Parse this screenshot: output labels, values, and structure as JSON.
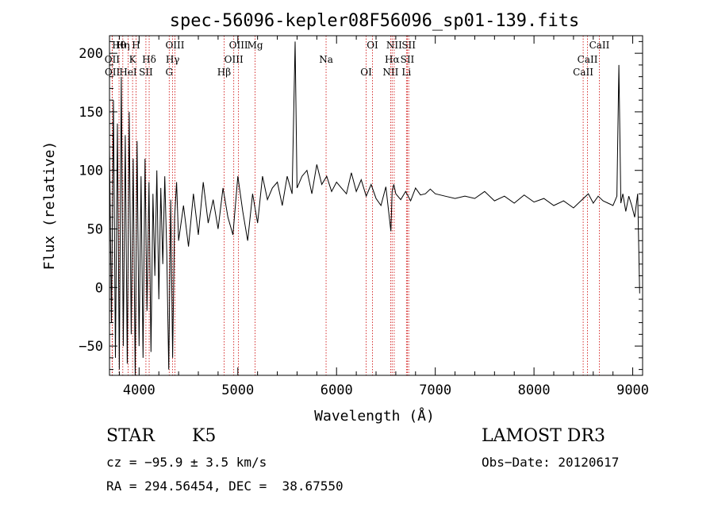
{
  "chart_data": {
    "type": "line",
    "title": "spec-56096-kepler08F56096_sp01-139.fits",
    "xlabel": "Wavelength (Å)",
    "ylabel": "Flux (relative)",
    "xlim": [
      3700,
      9100
    ],
    "ylim": [
      -75,
      215
    ],
    "x_ticks": [
      4000,
      5000,
      6000,
      7000,
      8000,
      9000
    ],
    "y_ticks": [
      -50,
      0,
      50,
      100,
      150,
      200
    ],
    "grid": false,
    "series": [
      {
        "name": "flux",
        "x": [
          3700,
          3720,
          3740,
          3760,
          3780,
          3800,
          3820,
          3840,
          3860,
          3880,
          3900,
          3920,
          3940,
          3960,
          3980,
          4000,
          4020,
          4040,
          4060,
          4080,
          4100,
          4120,
          4140,
          4160,
          4180,
          4200,
          4220,
          4240,
          4260,
          4280,
          4300,
          4320,
          4340,
          4360,
          4380,
          4400,
          4450,
          4500,
          4550,
          4600,
          4650,
          4700,
          4750,
          4800,
          4850,
          4900,
          4950,
          5000,
          5050,
          5100,
          5150,
          5200,
          5250,
          5300,
          5350,
          5400,
          5450,
          5500,
          5550,
          5580,
          5600,
          5650,
          5700,
          5750,
          5800,
          5850,
          5900,
          5950,
          6000,
          6050,
          6100,
          6150,
          6200,
          6250,
          6300,
          6350,
          6400,
          6450,
          6500,
          6550,
          6563,
          6580,
          6600,
          6650,
          6700,
          6750,
          6800,
          6850,
          6900,
          6950,
          7000,
          7100,
          7200,
          7300,
          7400,
          7500,
          7600,
          7700,
          7800,
          7900,
          8000,
          8100,
          8200,
          8300,
          8400,
          8500,
          8550,
          8600,
          8650,
          8700,
          8750,
          8800,
          8840,
          8860,
          8880,
          8900,
          8930,
          8960,
          8990,
          9020,
          9050,
          9070
        ],
        "values": [
          120,
          -30,
          160,
          -60,
          140,
          -70,
          180,
          -50,
          130,
          -65,
          150,
          -40,
          110,
          -75,
          125,
          -50,
          95,
          -60,
          110,
          -20,
          90,
          -55,
          80,
          10,
          100,
          -10,
          85,
          20,
          95,
          30,
          -70,
          75,
          -60,
          60,
          90,
          40,
          70,
          35,
          80,
          45,
          90,
          55,
          75,
          50,
          85,
          60,
          45,
          95,
          65,
          40,
          80,
          55,
          95,
          75,
          85,
          90,
          70,
          95,
          80,
          210,
          85,
          95,
          100,
          80,
          105,
          88,
          95,
          82,
          90,
          85,
          80,
          98,
          82,
          92,
          78,
          88,
          76,
          70,
          86,
          48,
          82,
          88,
          80,
          75,
          82,
          74,
          85,
          79,
          80,
          84,
          80,
          78,
          76,
          78,
          76,
          82,
          74,
          78,
          72,
          79,
          73,
          76,
          70,
          74,
          68,
          76,
          80,
          72,
          78,
          74,
          72,
          70,
          78,
          190,
          72,
          80,
          65,
          78,
          70,
          60,
          80,
          -5
        ]
      }
    ],
    "lines": [
      {
        "label": "Hθ",
        "x": 3797
      },
      {
        "label": "OII",
        "x": 3727
      },
      {
        "label": "OII",
        "x": 3729
      },
      {
        "label": "Hη",
        "x": 3835
      },
      {
        "label": "K",
        "x": 3934
      },
      {
        "label": "HeI",
        "x": 3889
      },
      {
        "label": "H",
        "x": 3969
      },
      {
        "label": "Hδ",
        "x": 4102
      },
      {
        "label": "SII",
        "x": 4069
      },
      {
        "label": "OIII",
        "x": 4363
      },
      {
        "label": "Hγ",
        "x": 4340
      },
      {
        "label": "G",
        "x": 4305
      },
      {
        "label": "OIII",
        "x": 5007
      },
      {
        "label": "OIII",
        "x": 4959
      },
      {
        "label": "Hβ",
        "x": 4861
      },
      {
        "label": "Mg",
        "x": 5175
      },
      {
        "label": "Na",
        "x": 5894
      },
      {
        "label": "OI",
        "x": 6300
      },
      {
        "label": "OI",
        "x": 6364
      },
      {
        "label": "Hα",
        "x": 6563
      },
      {
        "label": "NII",
        "x": 6548
      },
      {
        "label": "NII",
        "x": 6584
      },
      {
        "label": "SII",
        "x": 6717
      },
      {
        "label": "Li",
        "x": 6708
      },
      {
        "label": "SII",
        "x": 6731
      },
      {
        "label": "CaII",
        "x": 8542
      },
      {
        "label": "CaII",
        "x": 8498
      },
      {
        "label": "CaII",
        "x": 8662
      }
    ]
  },
  "info": {
    "object_class": "STAR",
    "subclass": "K5",
    "survey": "LAMOST DR3",
    "cz": "cz = −95.9 ± 3.5 km/s",
    "obs_date": "Obs−Date: 20120617",
    "radec": "RA = 294.56454, DEC =  38.67550"
  },
  "colors": {
    "spectrum": "#000000",
    "line_marker": "#cc0000",
    "axis": "#000000"
  }
}
